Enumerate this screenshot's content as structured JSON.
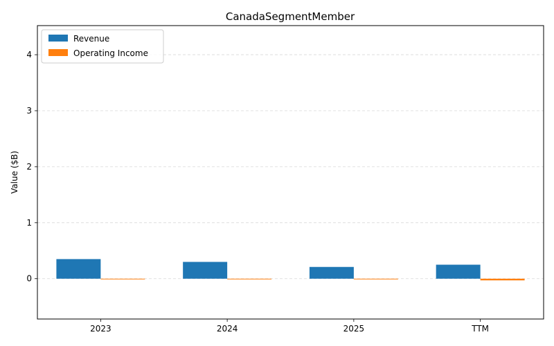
{
  "chart_data": {
    "type": "bar",
    "title": "CanadaSegmentMember",
    "xlabel": "",
    "ylabel": "Value ($B)",
    "categories": [
      "2023",
      "2024",
      "2025",
      "TTM"
    ],
    "series": [
      {
        "name": "Revenue",
        "color": "#1f77b4",
        "values": [
          0.35,
          0.3,
          0.21,
          0.25
        ]
      },
      {
        "name": "Operating Income",
        "color": "#ff7f0e",
        "values": [
          -0.01,
          -0.01,
          -0.01,
          -0.03
        ]
      }
    ],
    "ylim": [
      -0.72,
      4.52
    ],
    "yticks": [
      "0",
      "1",
      "2",
      "3",
      "4"
    ],
    "grid": "horizontal-dashed",
    "legend": "top-left"
  }
}
